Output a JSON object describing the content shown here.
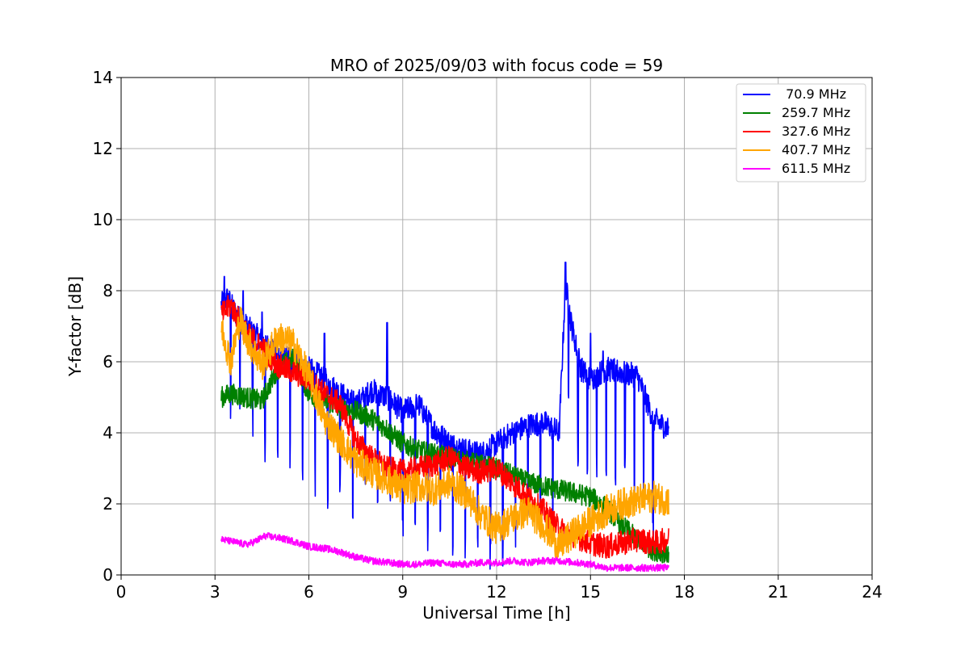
{
  "chart_data": {
    "type": "line",
    "title": "MRO of 2025/09/03 with focus code = 59",
    "xlabel": "Universal Time [h]",
    "ylabel": "Y-factor [dB]",
    "xlim": [
      0,
      24
    ],
    "ylim": [
      0,
      14
    ],
    "xticks": [
      0,
      3,
      6,
      9,
      12,
      15,
      18,
      21,
      24
    ],
    "yticks": [
      0,
      2,
      4,
      6,
      8,
      10,
      12,
      14
    ],
    "grid": true,
    "legend_position": "top-right",
    "series": [
      {
        "name": " 70.9 MHz",
        "color": "#0000ff",
        "x": [
          3.2,
          3.4,
          3.7,
          4.0,
          4.5,
          5.0,
          5.5,
          6.0,
          6.5,
          7.0,
          7.5,
          8.0,
          8.5,
          9.0,
          9.5,
          10.0,
          10.5,
          11.0,
          11.5,
          12.0,
          12.5,
          13.0,
          13.5,
          14.0,
          14.2,
          14.4,
          14.7,
          15.0,
          15.5,
          16.0,
          16.5,
          17.0,
          17.5
        ],
        "y": [
          7.6,
          7.8,
          7.3,
          7.0,
          6.6,
          6.2,
          6.0,
          5.8,
          5.5,
          5.1,
          4.8,
          5.2,
          5.0,
          4.6,
          4.8,
          4.1,
          3.7,
          3.5,
          3.4,
          3.7,
          4.0,
          4.2,
          4.3,
          4.0,
          8.2,
          7.0,
          5.8,
          5.5,
          5.8,
          5.7,
          5.6,
          4.4,
          4.1
        ],
        "dips": [
          3.5,
          3.8,
          4.2,
          4.6,
          5.0,
          5.4,
          5.8,
          6.2,
          6.6,
          7.0,
          7.4,
          7.8,
          8.2,
          8.6,
          9.0,
          9.4,
          9.8,
          10.2,
          10.6,
          11.0,
          11.4,
          11.8,
          12.2,
          12.6,
          13.0,
          13.4,
          13.8,
          14.3,
          14.6,
          14.9,
          15.2,
          15.5,
          15.8,
          16.1,
          16.4,
          16.7,
          17.0
        ],
        "spikes": [
          [
            3.3,
            8.4
          ],
          [
            3.9,
            8.0
          ],
          [
            4.5,
            7.4
          ],
          [
            6.5,
            6.8
          ],
          [
            8.5,
            7.1
          ],
          [
            14.2,
            8.8
          ],
          [
            15.0,
            6.8
          ],
          [
            15.4,
            6.3
          ]
        ]
      },
      {
        "name": "259.7 MHz",
        "color": "#008000",
        "x": [
          3.2,
          3.5,
          4.0,
          4.5,
          5.0,
          5.5,
          6.0,
          6.5,
          7.0,
          7.5,
          8.0,
          8.5,
          9.0,
          9.5,
          10.0,
          10.5,
          11.0,
          11.5,
          12.0,
          12.5,
          13.0,
          13.5,
          14.0,
          14.5,
          15.0,
          15.5,
          16.0,
          16.5,
          17.0,
          17.5
        ],
        "y": [
          5.0,
          5.1,
          5.0,
          4.9,
          5.8,
          6.1,
          5.1,
          4.9,
          4.7,
          4.6,
          4.4,
          4.1,
          3.7,
          3.5,
          3.4,
          3.3,
          3.2,
          3.1,
          3.0,
          2.8,
          2.6,
          2.5,
          2.4,
          2.3,
          2.2,
          1.9,
          1.4,
          1.0,
          0.7,
          0.6
        ]
      },
      {
        "name": "327.6 MHz",
        "color": "#ff0000",
        "x": [
          3.2,
          3.5,
          4.0,
          4.5,
          5.0,
          5.5,
          6.0,
          6.5,
          7.0,
          7.5,
          8.0,
          8.5,
          9.0,
          9.5,
          10.0,
          10.5,
          11.0,
          11.5,
          12.0,
          12.5,
          13.0,
          13.5,
          14.0,
          14.5,
          15.0,
          15.5,
          16.0,
          16.5,
          17.0,
          17.5
        ],
        "y": [
          7.3,
          7.6,
          6.8,
          6.4,
          5.9,
          5.7,
          5.5,
          5.1,
          4.8,
          3.8,
          3.3,
          3.0,
          2.9,
          3.0,
          3.1,
          3.3,
          3.0,
          2.9,
          3.0,
          2.6,
          2.2,
          1.8,
          1.3,
          1.1,
          0.9,
          0.8,
          0.9,
          1.0,
          0.9,
          1.0
        ]
      },
      {
        "name": "407.7 MHz",
        "color": "#ffa500",
        "x": [
          3.2,
          3.5,
          3.8,
          4.0,
          4.5,
          5.0,
          5.5,
          6.0,
          6.5,
          7.0,
          7.5,
          8.0,
          8.5,
          9.0,
          9.5,
          10.0,
          10.5,
          11.0,
          11.5,
          12.0,
          12.5,
          13.0,
          13.5,
          14.0,
          14.5,
          15.0,
          15.5,
          16.0,
          16.5,
          17.0,
          17.5
        ],
        "y": [
          7.0,
          6.0,
          7.2,
          6.7,
          5.9,
          6.7,
          6.5,
          5.6,
          4.4,
          3.8,
          3.2,
          2.9,
          2.7,
          2.4,
          2.5,
          2.4,
          2.6,
          2.3,
          1.7,
          1.3,
          1.6,
          1.8,
          1.4,
          0.8,
          1.2,
          1.5,
          1.8,
          2.0,
          2.1,
          2.2,
          2.1
        ]
      },
      {
        "name": "611.5 MHz",
        "color": "#ff00ff",
        "x": [
          3.2,
          3.5,
          4.0,
          4.3,
          4.6,
          5.0,
          5.5,
          6.0,
          6.5,
          7.0,
          7.5,
          8.0,
          8.5,
          9.0,
          9.5,
          10.0,
          10.5,
          11.0,
          11.5,
          12.0,
          12.5,
          13.0,
          13.5,
          14.0,
          14.5,
          15.0,
          15.5,
          16.0,
          16.5,
          17.0,
          17.5
        ],
        "y": [
          1.0,
          0.95,
          0.85,
          0.95,
          1.1,
          1.05,
          0.95,
          0.8,
          0.75,
          0.65,
          0.5,
          0.4,
          0.35,
          0.3,
          0.3,
          0.35,
          0.3,
          0.3,
          0.35,
          0.35,
          0.4,
          0.35,
          0.4,
          0.4,
          0.35,
          0.3,
          0.2,
          0.2,
          0.2,
          0.2,
          0.2
        ]
      }
    ]
  }
}
